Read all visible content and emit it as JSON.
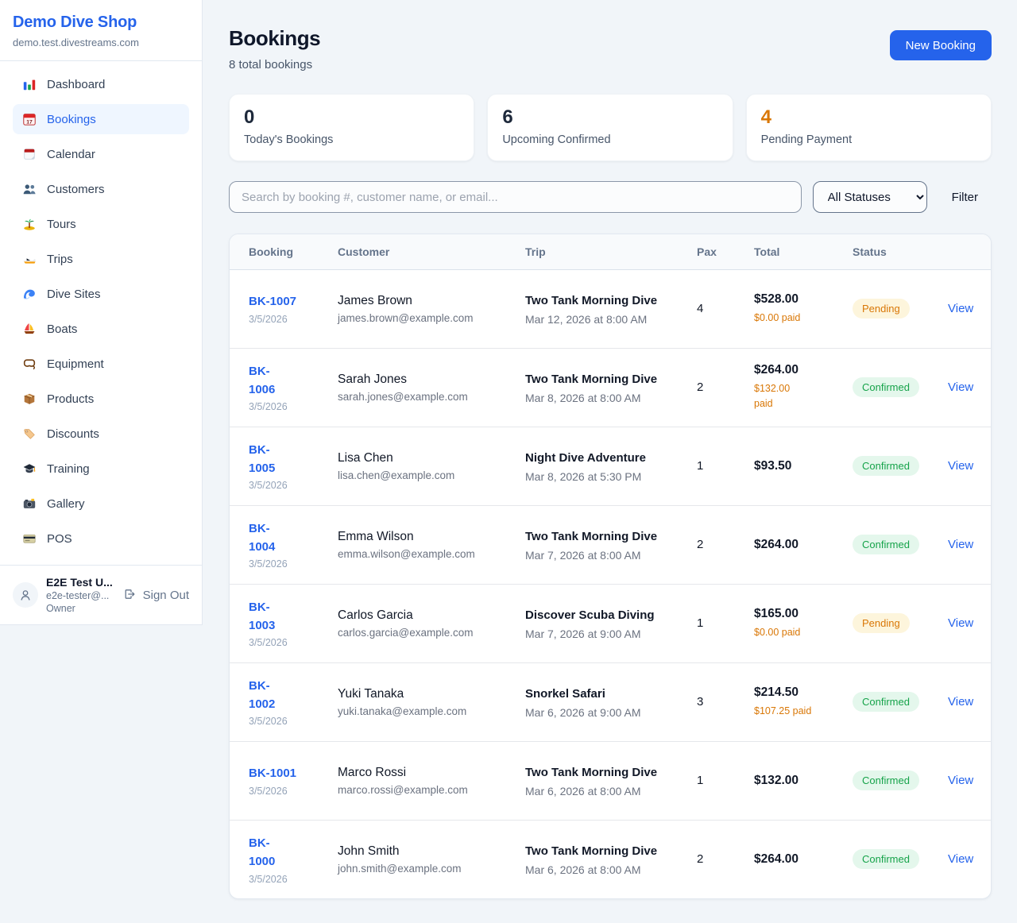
{
  "colors": {
    "accent": "#2563eb",
    "pending_text": "#d97706",
    "pending_bg": "#fdf5dc",
    "confirmed_text": "#16a34a",
    "confirmed_bg": "#e4f7ec"
  },
  "sidebar": {
    "shop_name": "Demo Dive Shop",
    "domain": "demo.test.divestreams.com",
    "items": [
      {
        "label": "Dashboard",
        "icon": "bar-chart-icon",
        "active": false
      },
      {
        "label": "Bookings",
        "icon": "bookings-calendar-icon",
        "active": true
      },
      {
        "label": "Calendar",
        "icon": "calendar-icon",
        "active": false
      },
      {
        "label": "Customers",
        "icon": "customers-icon",
        "active": false
      },
      {
        "label": "Tours",
        "icon": "island-icon",
        "active": false
      },
      {
        "label": "Trips",
        "icon": "speedboat-icon",
        "active": false
      },
      {
        "label": "Dive Sites",
        "icon": "wave-icon",
        "active": false
      },
      {
        "label": "Boats",
        "icon": "sailboat-icon",
        "active": false
      },
      {
        "label": "Equipment",
        "icon": "dive-mask-icon",
        "active": false
      },
      {
        "label": "Products",
        "icon": "package-icon",
        "active": false
      },
      {
        "label": "Discounts",
        "icon": "tag-icon",
        "active": false
      },
      {
        "label": "Training",
        "icon": "graduation-cap-icon",
        "active": false
      },
      {
        "label": "Gallery",
        "icon": "camera-icon",
        "active": false
      },
      {
        "label": "POS",
        "icon": "credit-card-icon",
        "active": false
      }
    ],
    "user": {
      "name": "E2E Test U...",
      "email": "e2e-tester@...",
      "role": "Owner",
      "sign_out_label": "Sign Out"
    }
  },
  "header": {
    "title": "Bookings",
    "subtitle": "8 total bookings",
    "new_booking_label": "New Booking"
  },
  "stats": [
    {
      "value": "0",
      "label": "Today's Bookings",
      "value_color": "#1e293b"
    },
    {
      "value": "6",
      "label": "Upcoming Confirmed",
      "value_color": "#1e293b"
    },
    {
      "value": "4",
      "label": "Pending Payment",
      "value_color": "#d97706"
    }
  ],
  "filters": {
    "search_placeholder": "Search by booking #, customer name, or email...",
    "search_value": "",
    "status_selected": "All Statuses",
    "filter_label": "Filter"
  },
  "table": {
    "columns": [
      "Booking",
      "Customer",
      "Trip",
      "Pax",
      "Total",
      "Status",
      ""
    ],
    "action_label": "View",
    "rows": [
      {
        "id": "BK-1007",
        "date": "3/5/2026",
        "customer_name": "James Brown",
        "customer_email": "james.brown@example.com",
        "trip_name": "Two Tank Morning Dive",
        "trip_datetime": "Mar 12, 2026 at 8:00 AM",
        "pax": "4",
        "total": "$528.00",
        "paid": "$0.00 paid",
        "status": "Pending"
      },
      {
        "id": "BK-\n1006",
        "date": "3/5/2026",
        "customer_name": "Sarah Jones",
        "customer_email": "sarah.jones@example.com",
        "trip_name": "Two Tank Morning Dive",
        "trip_datetime": "Mar 8, 2026 at 8:00 AM",
        "pax": "2",
        "total": "$264.00",
        "paid": "$132.00\npaid",
        "status": "Confirmed"
      },
      {
        "id": "BK-\n1005",
        "date": "3/5/2026",
        "customer_name": "Lisa Chen",
        "customer_email": "lisa.chen@example.com",
        "trip_name": "Night Dive Adventure",
        "trip_datetime": "Mar 8, 2026 at 5:30 PM",
        "pax": "1",
        "total": "$93.50",
        "paid": "",
        "status": "Confirmed"
      },
      {
        "id": "BK-\n1004",
        "date": "3/5/2026",
        "customer_name": "Emma Wilson",
        "customer_email": "emma.wilson@example.com",
        "trip_name": "Two Tank Morning Dive",
        "trip_datetime": "Mar 7, 2026 at 8:00 AM",
        "pax": "2",
        "total": "$264.00",
        "paid": "",
        "status": "Confirmed"
      },
      {
        "id": "BK-\n1003",
        "date": "3/5/2026",
        "customer_name": "Carlos Garcia",
        "customer_email": "carlos.garcia@example.com",
        "trip_name": "Discover Scuba Diving",
        "trip_datetime": "Mar 7, 2026 at 9:00 AM",
        "pax": "1",
        "total": "$165.00",
        "paid": "$0.00 paid",
        "status": "Pending"
      },
      {
        "id": "BK-\n1002",
        "date": "3/5/2026",
        "customer_name": "Yuki Tanaka",
        "customer_email": "yuki.tanaka@example.com",
        "trip_name": "Snorkel Safari",
        "trip_datetime": "Mar 6, 2026 at 9:00 AM",
        "pax": "3",
        "total": "$214.50",
        "paid": "$107.25 paid",
        "status": "Confirmed"
      },
      {
        "id": "BK-1001",
        "date": "3/5/2026",
        "customer_name": "Marco Rossi",
        "customer_email": "marco.rossi@example.com",
        "trip_name": "Two Tank Morning Dive",
        "trip_datetime": "Mar 6, 2026 at 8:00 AM",
        "pax": "1",
        "total": "$132.00",
        "paid": "",
        "status": "Confirmed"
      },
      {
        "id": "BK-\n1000",
        "date": "3/5/2026",
        "customer_name": "John Smith",
        "customer_email": "john.smith@example.com",
        "trip_name": "Two Tank Morning Dive",
        "trip_datetime": "Mar 6, 2026 at 8:00 AM",
        "pax": "2",
        "total": "$264.00",
        "paid": "",
        "status": "Confirmed"
      }
    ]
  }
}
